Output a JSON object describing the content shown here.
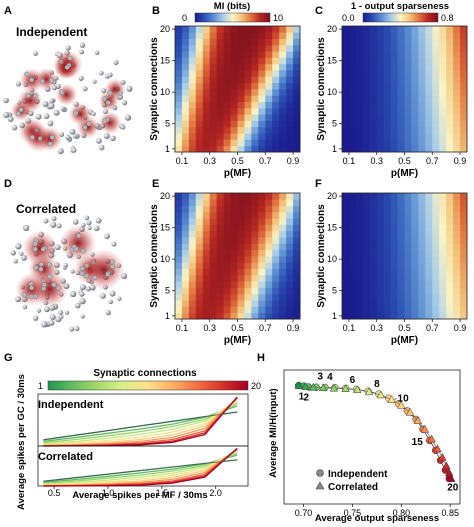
{
  "panel_letters": [
    "A",
    "B",
    "C",
    "D",
    "E",
    "F",
    "G",
    "H"
  ],
  "panel_a": {
    "label": "Independent"
  },
  "panel_d": {
    "label": "Correlated"
  },
  "colors": {
    "cmap_jet": [
      "#1a1a8c",
      "#2b4fb3",
      "#5b8fd1",
      "#a9cde8",
      "#fbf4c4",
      "#f3c27a",
      "#e0703b",
      "#b62623",
      "#7a0f1c"
    ],
    "gradient_greens_reds": [
      "#1a9850",
      "#66bd63",
      "#a6d96a",
      "#d9ef8b",
      "#fee08b",
      "#fdae61",
      "#f46d43",
      "#d73027",
      "#a50026"
    ]
  },
  "chart_data": [
    {
      "panel": "B",
      "type": "heatmap",
      "colorbar": {
        "title": "MI (bits)",
        "min": 0,
        "max": 10,
        "tick_labels": [
          "0",
          "10"
        ]
      },
      "xlabel": "p(MF)",
      "ylabel": "Synaptic connections",
      "x_ticks": [
        "0.1",
        "0.3",
        "0.5",
        "0.7",
        "0.9"
      ],
      "y_ticks": [
        "1",
        "5",
        "10",
        "15",
        "20"
      ],
      "xlim": [
        0.05,
        0.95
      ],
      "ylim": [
        1,
        20
      ],
      "grid": false
    },
    {
      "panel": "C",
      "type": "heatmap",
      "colorbar": {
        "title": "1 - output sparseness",
        "min": 0.0,
        "max": 0.8,
        "tick_labels": [
          "0.0",
          "0.8"
        ]
      },
      "xlabel": "p(MF)",
      "ylabel": "Synaptic connections",
      "x_ticks": [
        "0.1",
        "0.3",
        "0.5",
        "0.7",
        "0.9"
      ],
      "y_ticks": [
        "1",
        "5",
        "10",
        "15",
        "20"
      ],
      "xlim": [
        0.05,
        0.95
      ],
      "ylim": [
        1,
        20
      ],
      "grid": false
    },
    {
      "panel": "E",
      "type": "heatmap",
      "xlabel": "p(MF)",
      "ylabel": "Synaptic connections",
      "x_ticks": [
        "0.1",
        "0.3",
        "0.5",
        "0.7",
        "0.9"
      ],
      "y_ticks": [
        "1",
        "5",
        "10",
        "15",
        "20"
      ],
      "xlim": [
        0.05,
        0.95
      ],
      "ylim": [
        1,
        20
      ],
      "grid": false
    },
    {
      "panel": "F",
      "type": "heatmap",
      "xlabel": "p(MF)",
      "ylabel": "Synaptic connections",
      "x_ticks": [
        "0.1",
        "0.3",
        "0.5",
        "0.7",
        "0.9"
      ],
      "y_ticks": [
        "1",
        "5",
        "10",
        "15",
        "20"
      ],
      "xlim": [
        0.05,
        0.95
      ],
      "ylim": [
        1,
        20
      ],
      "grid": false
    },
    {
      "panel": "G",
      "type": "line",
      "colorbar": {
        "title": "Synaptic connections",
        "min": 1,
        "max": 20,
        "tick_labels": [
          "1",
          "20"
        ]
      },
      "subpanels": [
        "Independent",
        "Correlated"
      ],
      "xlabel": "Average spikes per MF / 30ms",
      "ylabel": "Average spikes per GC / 30ms",
      "x_ticks": [
        "0.5",
        "1.0",
        "1.5",
        "2.0"
      ],
      "xlim": [
        0.35,
        2.3
      ],
      "ylim": [
        0,
        3.2
      ],
      "x": [
        0.4,
        0.7,
        1.0,
        1.3,
        1.6,
        1.9,
        2.2
      ],
      "series": [
        {
          "values": [
            0.4,
            0.7,
            1.0,
            1.3,
            1.6,
            1.9,
            2.2
          ]
        },
        {
          "values": [
            0.3,
            0.55,
            0.82,
            1.1,
            1.42,
            1.85,
            2.6
          ]
        },
        {
          "values": [
            0.22,
            0.42,
            0.66,
            0.93,
            1.26,
            1.72,
            2.75
          ]
        },
        {
          "values": [
            0.15,
            0.3,
            0.5,
            0.75,
            1.08,
            1.6,
            2.9
          ]
        },
        {
          "values": [
            0.09,
            0.2,
            0.36,
            0.58,
            0.9,
            1.46,
            3.0
          ]
        },
        {
          "values": [
            0.05,
            0.12,
            0.24,
            0.42,
            0.72,
            1.3,
            3.05
          ]
        },
        {
          "values": [
            0.02,
            0.07,
            0.15,
            0.3,
            0.56,
            1.14,
            3.1
          ]
        },
        {
          "values": [
            0.01,
            0.04,
            0.09,
            0.2,
            0.42,
            0.98,
            3.12
          ]
        },
        {
          "values": [
            0.0,
            0.02,
            0.05,
            0.13,
            0.32,
            0.85,
            3.15
          ]
        },
        {
          "values": [
            0.0,
            0.01,
            0.03,
            0.08,
            0.24,
            0.74,
            3.17
          ]
        }
      ]
    },
    {
      "panel": "H",
      "type": "scatter",
      "xlabel": "Average output sparseness",
      "ylabel": "Average MI/H(input)",
      "x_ticks": [
        "0.70",
        "0.75",
        "0.80",
        "0.85"
      ],
      "xlim": [
        0.68,
        0.86
      ],
      "ylim": [
        0.05,
        1.0
      ],
      "legend": "bottom-left",
      "point_labels": [
        "1",
        "2",
        "3",
        "4",
        "6",
        "8",
        "10",
        "15",
        "20"
      ],
      "series": [
        {
          "name": "Independent",
          "marker": "circle",
          "x": [
            0.695,
            0.7,
            0.705,
            0.713,
            0.722,
            0.732,
            0.743,
            0.754,
            0.766,
            0.777,
            0.787,
            0.797,
            0.806,
            0.815,
            0.822,
            0.829,
            0.835,
            0.84,
            0.845,
            0.849
          ],
          "y": [
            0.89,
            0.885,
            0.88,
            0.878,
            0.876,
            0.874,
            0.87,
            0.862,
            0.85,
            0.83,
            0.8,
            0.76,
            0.71,
            0.65,
            0.58,
            0.5,
            0.43,
            0.36,
            0.29,
            0.23
          ]
        },
        {
          "name": "Correlated",
          "marker": "triangle",
          "x": [
            0.695,
            0.702,
            0.71,
            0.72,
            0.731,
            0.743,
            0.755,
            0.767,
            0.779,
            0.79,
            0.8,
            0.809,
            0.817,
            0.824,
            0.831,
            0.837,
            0.842,
            0.846,
            0.849,
            0.851
          ],
          "y": [
            0.89,
            0.883,
            0.877,
            0.874,
            0.871,
            0.867,
            0.86,
            0.845,
            0.823,
            0.79,
            0.75,
            0.7,
            0.64,
            0.58,
            0.51,
            0.44,
            0.38,
            0.32,
            0.27,
            0.23
          ]
        }
      ]
    }
  ]
}
